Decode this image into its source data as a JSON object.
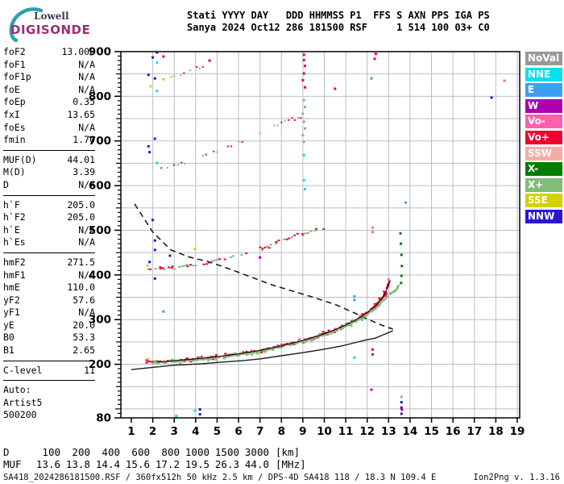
{
  "logo": {
    "top": "Lowell",
    "bottom": "DIGISONDE",
    "arc_color": "#2E9FB0"
  },
  "header": {
    "line1": "Stati YYYY DAY   DDD HHMMSS P1  FFS S AXN PPS IGA PS",
    "line2": "Sanya 2024 Oct12 286 181500 RSF     1 514 100 03+ C0"
  },
  "params": {
    "groups": [
      {
        "rows": [
          [
            "foF2",
            "13.000"
          ],
          [
            "foF1",
            "N/A"
          ],
          [
            "foF1p",
            "N/A"
          ],
          [
            "foE",
            "N/A"
          ],
          [
            "foEp",
            "0.35"
          ],
          [
            "fxI",
            "13.65"
          ],
          [
            "foEs",
            "N/A"
          ],
          [
            "fmin",
            "1.70"
          ]
        ]
      },
      {
        "rows": [
          [
            "MUF(D)",
            "44.01"
          ],
          [
            "M(D)",
            "3.39"
          ],
          [
            "D",
            "N/A"
          ]
        ]
      },
      {
        "rows": [
          [
            "h`F",
            "205.0"
          ],
          [
            "h`F2",
            "205.0"
          ],
          [
            "h`E",
            "N/A"
          ],
          [
            "h`Es",
            "N/A"
          ]
        ]
      },
      {
        "rows": [
          [
            "hmF2",
            "271.5"
          ],
          [
            "hmF1",
            "N/A"
          ],
          [
            "hmE",
            "110.0"
          ],
          [
            "yF2",
            "57.6"
          ],
          [
            "yF1",
            "N/A"
          ],
          [
            "yE",
            "20.0"
          ],
          [
            "B0",
            "53.3"
          ],
          [
            "B1",
            "2.65"
          ]
        ]
      },
      {
        "rows": [
          [
            "C-level",
            "11"
          ]
        ]
      }
    ],
    "footer": [
      "Auto:",
      "Artist5",
      "500200"
    ]
  },
  "legend": {
    "items": [
      {
        "label": "NoVal",
        "color": "#999999"
      },
      {
        "label": "NNE",
        "color": "#00E0EE"
      },
      {
        "label": "E",
        "color": "#3B9FF3"
      },
      {
        "label": "W",
        "color": "#AE00AE"
      },
      {
        "label": "Vo-",
        "color": "#FF5FAE"
      },
      {
        "label": "Vo+",
        "color": "#EF0032"
      },
      {
        "label": "SSW",
        "color": "#F2AEA6"
      },
      {
        "label": "X-",
        "color": "#007D00"
      },
      {
        "label": "X+",
        "color": "#7FBC78"
      },
      {
        "label": "SSE",
        "color": "#D2D200"
      },
      {
        "label": "NNW",
        "color": "#2A16D5"
      }
    ]
  },
  "dmuf": {
    "d_label": "D",
    "d_values": [
      "100",
      "200",
      "400",
      "600",
      "800",
      "1000",
      "1500",
      "3000"
    ],
    "d_unit": "[km]",
    "muf_label": "MUF",
    "muf_values": [
      "13.6",
      "13.8",
      "14.4",
      "15.6",
      "17.2",
      "19.5",
      "26.3",
      "44.0"
    ],
    "muf_unit": "[MHz]"
  },
  "statusbar": {
    "left": "SA418_2024286181500.RSF / 360fx512h 50 kHz 2.5 km / DPS-4D SA418 118 / 18.3 N 109.4 E",
    "right": "Ion2Png v. 1.3.16"
  },
  "chart_data": {
    "type": "scatter",
    "title": "",
    "xlabel_unit": "MHz",
    "ylabel_unit": "km",
    "x_axis": {
      "min": 1,
      "max": 19,
      "tick_step": 1
    },
    "y_axis": {
      "min": 80,
      "max": 900,
      "major_labels": [
        900,
        800,
        700,
        600,
        500,
        400,
        300,
        200,
        80
      ],
      "minor_step": 10,
      "grid_step": 50
    },
    "grid": true,
    "colors": {
      "NoVal": "#999999",
      "NNE": "#00E0EE",
      "E": "#3B9FF3",
      "W": "#AE00AE",
      "Vo-": "#FF5FAE",
      "Vo+": "#EF0032",
      "SSW": "#F2AEA6",
      "X-": "#007D00",
      "X+": "#7FBC78",
      "SSE": "#D2D200",
      "NNW": "#2A16D5"
    },
    "traces": [
      {
        "name": "F2-O-trace",
        "color": "Vo+",
        "style": "dense",
        "points": [
          [
            1.7,
            208
          ],
          [
            2,
            205
          ],
          [
            2.5,
            206
          ],
          [
            3,
            208
          ],
          [
            3.5,
            210
          ],
          [
            4,
            212
          ],
          [
            4.5,
            214
          ],
          [
            5,
            217
          ],
          [
            5.5,
            220
          ],
          [
            6,
            223
          ],
          [
            6.5,
            227
          ],
          [
            7,
            231
          ],
          [
            7.5,
            236
          ],
          [
            8,
            241
          ],
          [
            8.5,
            247
          ],
          [
            9,
            253
          ],
          [
            9.5,
            260
          ],
          [
            10,
            268
          ],
          [
            10.5,
            277
          ],
          [
            11,
            288
          ],
          [
            11.5,
            300
          ],
          [
            12,
            315
          ],
          [
            12.4,
            331
          ],
          [
            12.7,
            348
          ],
          [
            12.9,
            366
          ],
          [
            13.0,
            380
          ],
          [
            13.08,
            388
          ]
        ]
      },
      {
        "name": "F2-X-trace",
        "color": "X+",
        "style": "dense",
        "points": [
          [
            2.0,
            203
          ],
          [
            2.5,
            204
          ],
          [
            3,
            206
          ],
          [
            3.5,
            208
          ],
          [
            4,
            210
          ],
          [
            4.5,
            212
          ],
          [
            5,
            215
          ],
          [
            5.5,
            218
          ],
          [
            6,
            221
          ],
          [
            6.5,
            225
          ],
          [
            7,
            229
          ],
          [
            7.5,
            234
          ],
          [
            8,
            239
          ],
          [
            8.5,
            245
          ],
          [
            9,
            251
          ],
          [
            9.5,
            258
          ],
          [
            10,
            266
          ],
          [
            10.5,
            275
          ],
          [
            11,
            285
          ],
          [
            11.5,
            297
          ],
          [
            12,
            311
          ],
          [
            12.5,
            330
          ],
          [
            12.8,
            345
          ],
          [
            13.1,
            358
          ],
          [
            13.35,
            368
          ],
          [
            13.5,
            378
          ]
        ]
      },
      {
        "name": "second-hop-trace",
        "color": "mix",
        "style": "sparse",
        "points": [
          [
            1.7,
            415
          ],
          [
            2,
            411
          ],
          [
            2.5,
            413
          ],
          [
            3,
            416
          ],
          [
            3.5,
            419
          ],
          [
            4,
            423
          ],
          [
            4.5,
            427
          ],
          [
            5,
            432
          ],
          [
            5.5,
            438
          ],
          [
            6,
            444
          ],
          [
            6.5,
            451
          ],
          [
            7,
            459
          ],
          [
            7.5,
            468
          ],
          [
            8,
            477
          ],
          [
            8.5,
            486
          ],
          [
            9,
            493
          ],
          [
            9.5,
            499
          ],
          [
            10.1,
            507
          ]
        ]
      },
      {
        "name": "third-hop-trace",
        "color": "mix",
        "style": "sparser",
        "points": [
          [
            2.4,
            636
          ],
          [
            3,
            645
          ],
          [
            3.5,
            652
          ],
          [
            4,
            660
          ],
          [
            4.5,
            668
          ],
          [
            5,
            677
          ],
          [
            5.5,
            686
          ],
          [
            6,
            696
          ],
          [
            6.5,
            707
          ],
          [
            7,
            718
          ],
          [
            7.5,
            729
          ],
          [
            8,
            739
          ],
          [
            8.5,
            748
          ],
          [
            9.05,
            756
          ]
        ]
      },
      {
        "name": "fourth-hop-trace",
        "color": "mix",
        "style": "sparser",
        "points": [
          [
            2.7,
            838
          ],
          [
            3,
            843
          ],
          [
            3.3,
            848
          ],
          [
            3.6,
            854
          ],
          [
            3.9,
            860
          ],
          [
            4.2,
            865
          ],
          [
            4.6,
            871
          ]
        ]
      }
    ],
    "curves": [
      {
        "name": "muf-transmission-curve",
        "style": "dashed",
        "points": [
          [
            1.15,
            559
          ],
          [
            2.0,
            496
          ],
          [
            2.84,
            456
          ],
          [
            3.71,
            440
          ],
          [
            4.65,
            429
          ],
          [
            5.66,
            412
          ],
          [
            7.54,
            378
          ],
          [
            9.42,
            351
          ],
          [
            10.55,
            333
          ],
          [
            11.4,
            315
          ],
          [
            11.98,
            302
          ],
          [
            12.54,
            290
          ],
          [
            12.99,
            282
          ],
          [
            13.2,
            279
          ]
        ]
      },
      {
        "name": "true-height-profile",
        "style": "solid",
        "points": [
          [
            1.0,
            188
          ],
          [
            2,
            193
          ],
          [
            3,
            198
          ],
          [
            4.3,
            201
          ],
          [
            5,
            204
          ],
          [
            6.2,
            208
          ],
          [
            7,
            212
          ],
          [
            8,
            219
          ],
          [
            9,
            226
          ],
          [
            9.9,
            233
          ],
          [
            10.8,
            241
          ],
          [
            11.4,
            248
          ],
          [
            12.0,
            255
          ],
          [
            12.35,
            258
          ],
          [
            12.7,
            265
          ],
          [
            12.9,
            269
          ],
          [
            13.05,
            272
          ],
          [
            13.2,
            275
          ]
        ]
      },
      {
        "name": "artist-fitted-trace",
        "style": "thin",
        "points": [
          [
            2.2,
            205
          ],
          [
            3,
            208
          ],
          [
            4,
            212
          ],
          [
            5,
            217
          ],
          [
            6,
            223
          ],
          [
            7,
            231
          ],
          [
            8,
            241
          ],
          [
            9,
            253
          ],
          [
            10,
            268
          ],
          [
            10.5,
            277
          ],
          [
            11,
            288
          ],
          [
            11.5,
            300
          ],
          [
            12,
            315
          ],
          [
            12.4,
            331
          ],
          [
            12.7,
            348
          ],
          [
            12.9,
            366
          ],
          [
            13.0,
            380
          ],
          [
            13.08,
            388
          ]
        ]
      }
    ],
    "scatter": [
      [
        2.0,
        887,
        "NNW"
      ],
      [
        2.5,
        889,
        "Vo+"
      ],
      [
        1.8,
        848,
        "NNW"
      ],
      [
        2.1,
        840,
        "NNW"
      ],
      [
        2.2,
        898,
        "NNW"
      ],
      [
        2.2,
        875,
        "NNE"
      ],
      [
        2.2,
        812,
        "NNE"
      ],
      [
        2.5,
        838,
        "SSE"
      ],
      [
        1.9,
        822,
        "SSE"
      ],
      [
        4.65,
        880,
        "Vo+"
      ],
      [
        2.1,
        705,
        "NNW"
      ],
      [
        1.8,
        688,
        "NNW"
      ],
      [
        1.85,
        675,
        "NNW"
      ],
      [
        2.2,
        651,
        "NNE"
      ],
      [
        2.0,
        523,
        "NNW"
      ],
      [
        2.1,
        477,
        "NNW"
      ],
      [
        1.85,
        429,
        "NNW"
      ],
      [
        2.8,
        443,
        "NNW"
      ],
      [
        2.1,
        456,
        "NNW"
      ],
      [
        2.1,
        392,
        "NNW"
      ],
      [
        3.97,
        458,
        "SSE"
      ],
      [
        1.75,
        421,
        "SSE"
      ],
      [
        1.78,
        212,
        "SSE"
      ],
      [
        9.05,
        893,
        "Vo+"
      ],
      [
        9.05,
        881,
        "Vo+"
      ],
      [
        9.1,
        868,
        "Vo+"
      ],
      [
        9.05,
        851,
        "Vo+"
      ],
      [
        9.0,
        836,
        "Vo+"
      ],
      [
        9.1,
        820,
        "Vo+"
      ],
      [
        9.05,
        791,
        "X+"
      ],
      [
        9.1,
        776,
        "X+"
      ],
      [
        9.0,
        761,
        "X+"
      ],
      [
        9.05,
        743,
        "X+"
      ],
      [
        9.1,
        728,
        "X+"
      ],
      [
        9.0,
        713,
        "X+"
      ],
      [
        9.05,
        698,
        "X+"
      ],
      [
        9.05,
        668,
        "NNE"
      ],
      [
        9.05,
        612,
        "NNE"
      ],
      [
        9.1,
        592,
        "NNE"
      ],
      [
        12.2,
        840,
        "E"
      ],
      [
        10.5,
        817,
        "Vo+"
      ],
      [
        12.4,
        895,
        "Vo+"
      ],
      [
        12.35,
        884,
        "Vo+"
      ],
      [
        17.8,
        797,
        "NNW"
      ],
      [
        18.4,
        835,
        "Vo-"
      ],
      [
        13.8,
        562,
        "E"
      ],
      [
        7.0,
        439,
        "W"
      ],
      [
        2.5,
        318,
        "E"
      ],
      [
        11.4,
        352,
        "E"
      ],
      [
        11.4,
        344,
        "E"
      ],
      [
        11.4,
        215,
        "NNE"
      ],
      [
        12.25,
        506,
        "Vo-"
      ],
      [
        12.25,
        496,
        "Vo-"
      ],
      [
        12.25,
        233,
        "Vo+"
      ],
      [
        12.25,
        222,
        "Vo+"
      ],
      [
        12.2,
        143,
        "W"
      ],
      [
        13.6,
        127,
        "X+"
      ],
      [
        13.6,
        115,
        "NNW"
      ],
      [
        13.6,
        103,
        "NNW"
      ],
      [
        13.6,
        89,
        "NNW"
      ],
      [
        13.62,
        98,
        "Vo+"
      ],
      [
        3.97,
        96,
        "NNE"
      ],
      [
        4.2,
        99,
        "NNW"
      ],
      [
        4.2,
        88,
        "NNW"
      ],
      [
        3.1,
        84,
        "NNE"
      ],
      [
        13.55,
        493,
        "X-"
      ],
      [
        13.57,
        470,
        "X-"
      ],
      [
        13.6,
        445,
        "X-"
      ],
      [
        13.62,
        420,
        "X-"
      ],
      [
        13.6,
        398,
        "X-"
      ],
      [
        13.58,
        382,
        "X-"
      ],
      [
        13.0,
        390,
        "Vo-"
      ]
    ]
  }
}
